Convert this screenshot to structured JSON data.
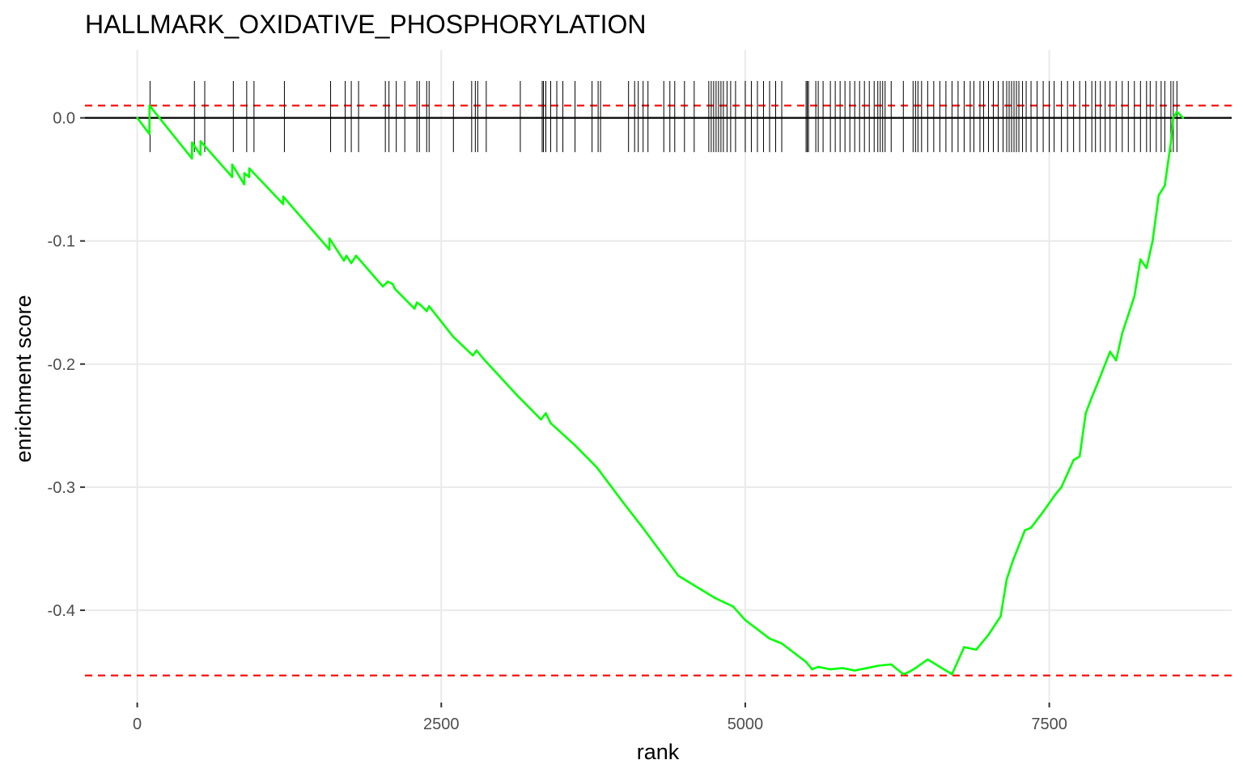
{
  "chart_data": {
    "type": "line",
    "title": "HALLMARK_OXIDATIVE_PHOSPHORYLATION",
    "xlabel": "rank",
    "ylabel": "enrichment score",
    "xlim": [
      -430,
      9000
    ],
    "ylim": [
      -0.475,
      0.055
    ],
    "x_ticks": [
      0,
      2500,
      5000,
      7500
    ],
    "x_tick_labels": [
      "0",
      "2500",
      "5000",
      "7500"
    ],
    "y_ticks": [
      0.0,
      -0.1,
      -0.2,
      -0.3,
      -0.4
    ],
    "y_tick_labels": [
      "0.0",
      "-0.1",
      "-0.2",
      "-0.3",
      "-0.4"
    ],
    "grid": true,
    "legend": "none",
    "zero_line": 0.0,
    "threshold_lines": [
      0.01,
      -0.453
    ],
    "colors": {
      "curve": "#00ff00",
      "threshold": "#ff0000",
      "ticks": "#000000",
      "zero": "#000000"
    },
    "series": [
      {
        "x": [
          0,
          100,
          101,
          450,
          451,
          520,
          521,
          780,
          781,
          880,
          881,
          920,
          921,
          1200,
          1201,
          1580,
          1581,
          1700,
          1720,
          1760,
          1800,
          2020,
          2060,
          2100,
          2120,
          2280,
          2300,
          2330,
          2380,
          2400,
          2600,
          2760,
          2790,
          2850,
          3120,
          3320,
          3360,
          3400,
          3600,
          3780,
          4000,
          4150,
          4450,
          4750,
          4900,
          5000,
          5200,
          5300,
          5500,
          5550,
          5600,
          5700,
          5800,
          5900,
          6000,
          6100,
          6200,
          6300,
          6350,
          6400,
          6500,
          6700,
          6800,
          6900,
          7000,
          7100,
          7150,
          7200,
          7300,
          7350,
          7450,
          7550,
          7600,
          7700,
          7750,
          7800,
          7850,
          7900,
          8000,
          8050,
          8100,
          8200,
          8250,
          8300,
          8350,
          8400,
          8450,
          8500,
          8520,
          8550,
          8600
        ],
        "y": [
          0.0,
          -0.013,
          0.01,
          -0.033,
          -0.02,
          -0.03,
          -0.019,
          -0.048,
          -0.038,
          -0.054,
          -0.045,
          -0.048,
          -0.041,
          -0.07,
          -0.064,
          -0.107,
          -0.098,
          -0.116,
          -0.112,
          -0.118,
          -0.112,
          -0.137,
          -0.133,
          -0.135,
          -0.139,
          -0.155,
          -0.15,
          -0.152,
          -0.157,
          -0.153,
          -0.178,
          -0.193,
          -0.189,
          -0.196,
          -0.225,
          -0.245,
          -0.24,
          -0.248,
          -0.266,
          -0.284,
          -0.313,
          -0.332,
          -0.372,
          -0.39,
          -0.397,
          -0.408,
          -0.423,
          -0.427,
          -0.442,
          -0.448,
          -0.446,
          -0.448,
          -0.447,
          -0.449,
          -0.447,
          -0.445,
          -0.444,
          -0.452,
          -0.45,
          -0.447,
          -0.44,
          -0.452,
          -0.43,
          -0.432,
          -0.42,
          -0.405,
          -0.375,
          -0.36,
          -0.335,
          -0.333,
          -0.32,
          -0.306,
          -0.3,
          -0.278,
          -0.275,
          -0.24,
          -0.227,
          -0.215,
          -0.19,
          -0.197,
          -0.175,
          -0.145,
          -0.115,
          -0.122,
          -0.1,
          -0.063,
          -0.055,
          -0.02,
          0.0,
          0.005,
          0.0
        ]
      }
    ],
    "hit_ranks": [
      105,
      470,
      555,
      790,
      900,
      960,
      1210,
      1590,
      1710,
      1760,
      1820,
      2040,
      2070,
      2130,
      2200,
      2300,
      2320,
      2380,
      2400,
      2600,
      2750,
      2780,
      2800,
      2870,
      3150,
      3330,
      3340,
      3360,
      3400,
      3450,
      3500,
      3600,
      3740,
      3790,
      3810,
      4040,
      4090,
      4120,
      4160,
      4200,
      4330,
      4380,
      4420,
      4500,
      4580,
      4700,
      4720,
      4740,
      4760,
      4780,
      4800,
      4820,
      4850,
      4880,
      4920,
      5000,
      5050,
      5100,
      5150,
      5200,
      5250,
      5300,
      5500,
      5510,
      5520,
      5580,
      5600,
      5640,
      5700,
      5740,
      5780,
      5820,
      5860,
      5900,
      5940,
      5980,
      6020,
      6060,
      6090,
      6110,
      6130,
      6150,
      6200,
      6300,
      6380,
      6400,
      6420,
      6450,
      6500,
      6550,
      6600,
      6650,
      6700,
      6750,
      6800,
      6850,
      6880,
      6930,
      6960,
      7000,
      7040,
      7080,
      7120,
      7150,
      7170,
      7190,
      7210,
      7230,
      7250,
      7280,
      7310,
      7350,
      7400,
      7450,
      7500,
      7540,
      7600,
      7650,
      7700,
      7750,
      7800,
      7850,
      7880,
      7920,
      7960,
      8000,
      8050,
      8100,
      8150,
      8200,
      8250,
      8300,
      8330,
      8380,
      8420,
      8450,
      8500,
      8520,
      8550
    ]
  }
}
